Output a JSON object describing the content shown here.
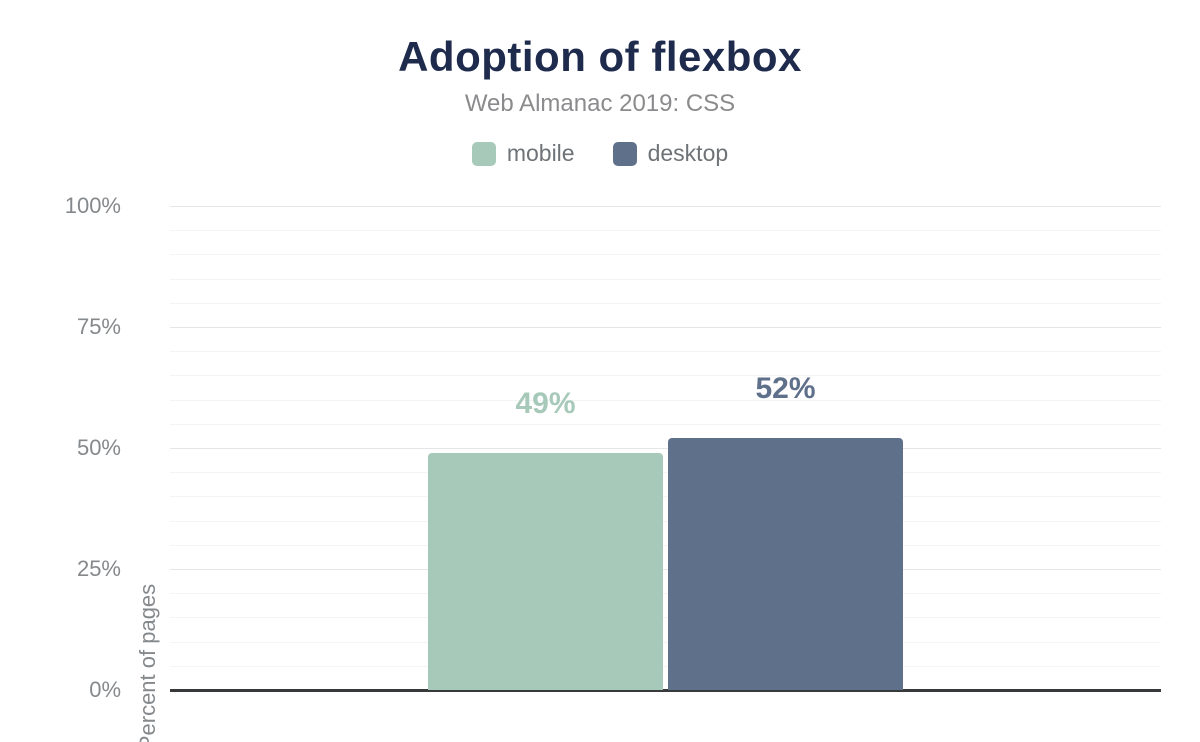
{
  "header": {
    "title": "Adoption of flexbox",
    "subtitle": "Web Almanac 2019: CSS"
  },
  "legend": {
    "items": [
      {
        "label": "mobile",
        "color": "#a7c9ba"
      },
      {
        "label": "desktop",
        "color": "#5f708a"
      }
    ]
  },
  "chart_data": {
    "type": "bar",
    "title": "Adoption of flexbox",
    "subtitle": "Web Almanac 2019: CSS",
    "xlabel": "",
    "ylabel": "Percent of pages",
    "ylim": [
      0,
      100
    ],
    "yticks": [
      0,
      25,
      50,
      75,
      100
    ],
    "ytick_labels": [
      "0%",
      "25%",
      "50%",
      "75%",
      "100%"
    ],
    "minor_grid_step": 5,
    "grid": true,
    "legend_position": "top",
    "series": [
      {
        "name": "mobile",
        "value": 49,
        "data_label": "49%",
        "color": "#a7c9ba"
      },
      {
        "name": "desktop",
        "value": 52,
        "data_label": "52%",
        "color": "#5f708a"
      }
    ]
  },
  "colors": {
    "title": "#1e2b4d",
    "subtitle": "#8b8b8e",
    "axis_text": "#85898c",
    "axis_line": "#37393b",
    "grid_major": "#e4e6e7",
    "grid_minor": "#f3f4f4",
    "background": "#ffffff"
  }
}
